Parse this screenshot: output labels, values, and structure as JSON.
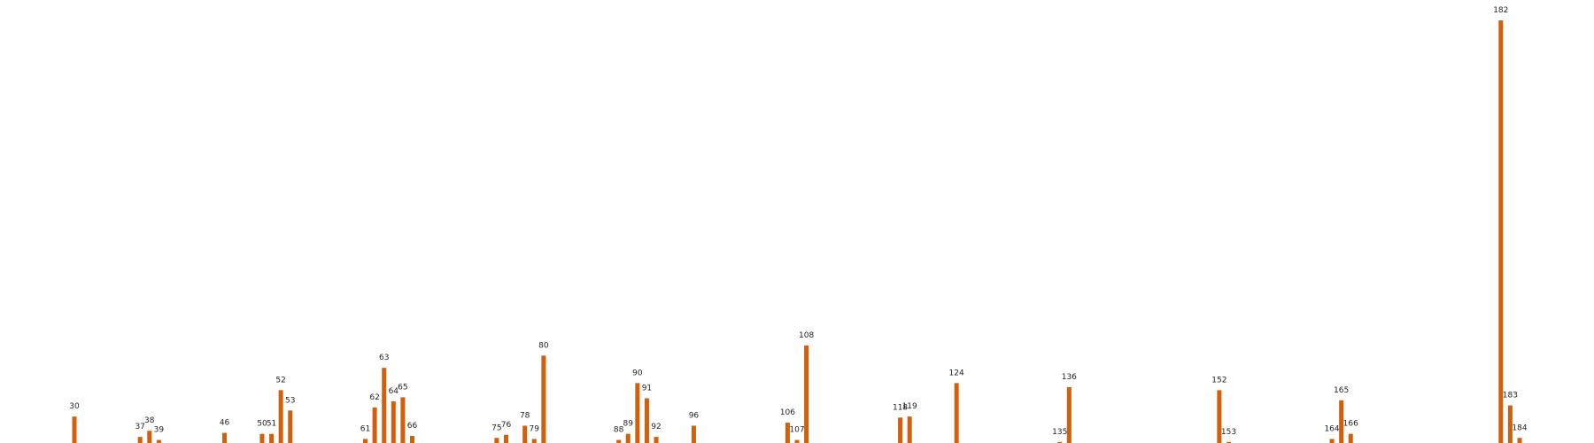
{
  "chart_data": {
    "type": "bar",
    "x": [
      30,
      37,
      38,
      39,
      46,
      50,
      51,
      52,
      53,
      61,
      62,
      63,
      64,
      65,
      66,
      75,
      76,
      78,
      79,
      80,
      88,
      89,
      90,
      91,
      92,
      96,
      106,
      107,
      108,
      118,
      119,
      124,
      135,
      136,
      152,
      153,
      164,
      165,
      166,
      182,
      183,
      184
    ],
    "values": [
      26,
      6,
      12,
      3,
      10,
      9,
      9,
      52,
      32,
      4,
      35,
      74,
      41,
      45,
      7,
      5,
      8,
      17,
      4,
      86,
      3,
      9,
      59,
      44,
      6,
      17,
      20,
      3,
      96,
      25,
      26,
      59,
      1,
      55,
      52,
      1,
      4,
      42,
      9,
      416,
      37,
      5
    ],
    "color": "#d35f0d"
  }
}
